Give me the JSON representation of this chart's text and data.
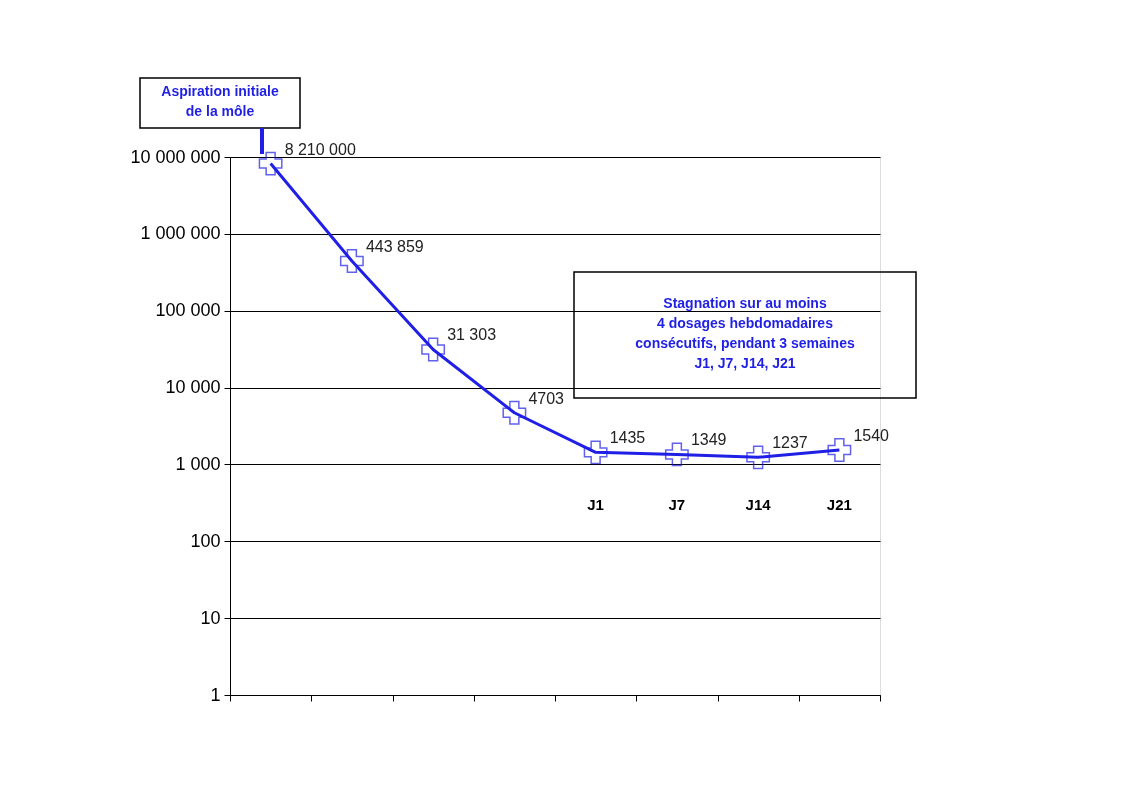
{
  "chart_data": {
    "type": "line",
    "categories": [
      null,
      null,
      null,
      null,
      "J1",
      "J7",
      "J14",
      "J21"
    ],
    "series": [
      {
        "color": "#1f1fe6",
        "values": [
          8210000,
          443859,
          31303,
          4703,
          1435,
          1349,
          1237,
          1540
        ]
      }
    ],
    "value_labels": [
      "8 210 000",
      "443 859",
      "31 303",
      "4703",
      "1435",
      "1349",
      "1237",
      "1540"
    ],
    "log": true,
    "ylim": [
      1,
      10000000
    ],
    "yticks": [
      {
        "value": 1,
        "label": "1"
      },
      {
        "value": 10,
        "label": "10"
      },
      {
        "value": 100,
        "label": "100"
      },
      {
        "value": 1000,
        "label": "1 000"
      },
      {
        "value": 10000,
        "label": "10 000"
      },
      {
        "value": 100000,
        "label": "100 000"
      },
      {
        "value": 1000000,
        "label": "1 000 000"
      },
      {
        "value": 10000000,
        "label": "10 000 000"
      }
    ],
    "grid": "y",
    "marker": "cross",
    "line_style": "solid",
    "annotations": [
      "Aspiration initiale\nde la môle",
      "Stagnation sur au moins\n4 dosages hebdomadaires\nconsécutifs, pendant 3 semaines\nJ1, J7, J14, J21"
    ]
  }
}
